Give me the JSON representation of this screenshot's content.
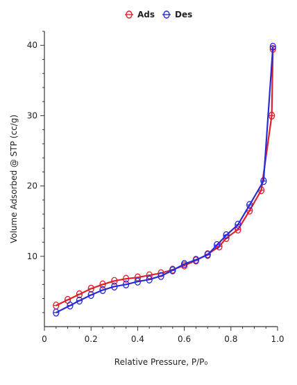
{
  "chart_data": {
    "type": "line",
    "xlabel": "Relative Pressure, P/P₀",
    "ylabel": "Volume Adsorbed @ STP (cc/g)",
    "xlim": [
      0,
      1.0
    ],
    "ylim": [
      0,
      42
    ],
    "xticks": [
      0,
      0.2,
      0.4,
      0.6,
      0.8,
      1.0
    ],
    "xtick_labels": [
      "0",
      "0.2",
      "0.4",
      "0.6",
      "0.8",
      "1.0"
    ],
    "yticks": [
      10,
      20,
      30,
      40
    ],
    "ytick_labels": [
      "10",
      "20",
      "30",
      "40"
    ],
    "grid": false,
    "legend_position": "top-center",
    "series": [
      {
        "name": "Ads",
        "color": "#e0202a",
        "marker": "circle-line",
        "x": [
          0.05,
          0.1,
          0.15,
          0.2,
          0.25,
          0.3,
          0.35,
          0.4,
          0.45,
          0.5,
          0.55,
          0.6,
          0.65,
          0.7,
          0.75,
          0.78,
          0.83,
          0.88,
          0.93,
          0.975,
          0.98
        ],
        "y": [
          3.0,
          3.8,
          4.6,
          5.4,
          6.0,
          6.5,
          6.8,
          7.0,
          7.3,
          7.6,
          8.1,
          8.7,
          9.4,
          10.3,
          11.4,
          12.6,
          13.8,
          16.5,
          19.4,
          30.0,
          39.5
        ]
      },
      {
        "name": "Des",
        "color": "#2b2bd6",
        "marker": "circle-line",
        "x": [
          0.05,
          0.11,
          0.15,
          0.2,
          0.25,
          0.3,
          0.35,
          0.4,
          0.45,
          0.5,
          0.55,
          0.6,
          0.65,
          0.7,
          0.74,
          0.78,
          0.83,
          0.88,
          0.94,
          0.98
        ],
        "y": [
          2.0,
          3.0,
          3.7,
          4.5,
          5.2,
          5.7,
          6.0,
          6.4,
          6.7,
          7.2,
          8.0,
          8.9,
          9.5,
          10.2,
          11.6,
          13.0,
          14.5,
          17.3,
          20.7,
          39.8
        ]
      }
    ]
  }
}
